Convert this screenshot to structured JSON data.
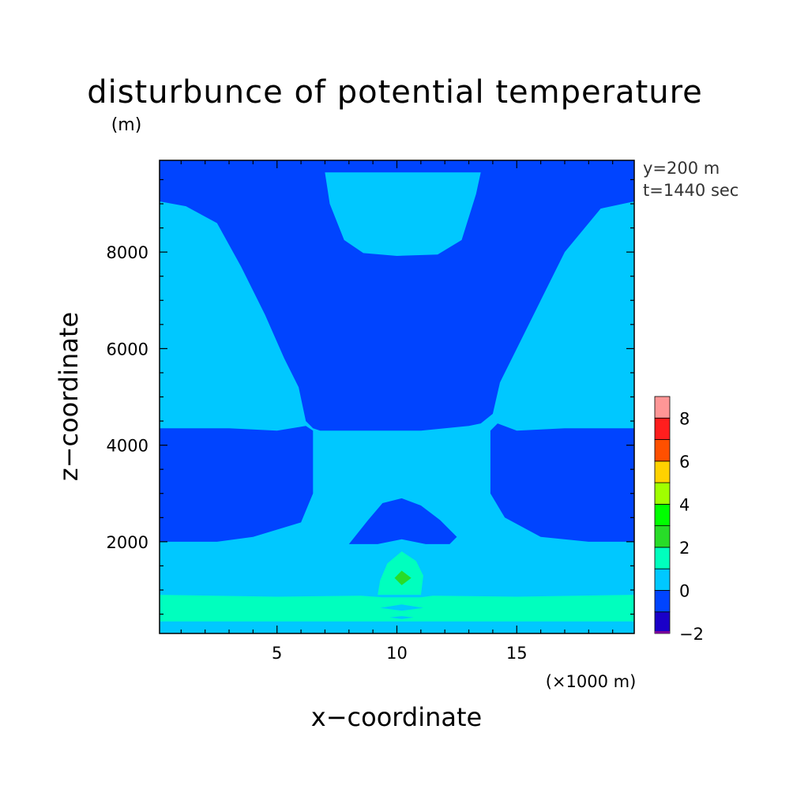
{
  "chart_data": {
    "type": "heatmap",
    "title": "disturbunce of potential temperature",
    "yunit": "(m)",
    "xlabel": "x−coordinate",
    "ylabel": "z−coordinate",
    "xunit": "(×1000 m)",
    "annotations": [
      "y=200 m",
      "t=1440 sec"
    ],
    "xlim": [
      0.1,
      19.9
    ],
    "ylim": [
      100,
      9900
    ],
    "xticks": [
      5,
      10,
      15
    ],
    "yticks": [
      2000,
      4000,
      6000,
      8000
    ],
    "xtick_labels": [
      "5",
      "10",
      "15"
    ],
    "ytick_labels": [
      "2000",
      "4000",
      "6000",
      "8000"
    ],
    "colorbar": {
      "levels": [
        -2,
        -1,
        0,
        1,
        2,
        3,
        4,
        5,
        6,
        7,
        8,
        9
      ],
      "tick_values": [
        -2,
        0,
        2,
        4,
        6,
        8
      ],
      "tick_labels": [
        "−2",
        "0",
        "2",
        "4",
        "6",
        "8"
      ],
      "colors": [
        "#1a00c8",
        "#0044ff",
        "#00c8ff",
        "#00ffbe",
        "#28dc28",
        "#00ff00",
        "#a0ff00",
        "#ffd200",
        "#ff5000",
        "#ff1e1e",
        "#ff9696"
      ]
    },
    "regions": [
      {
        "name": "background-band-0-to-1",
        "level": 0,
        "polygon": []
      },
      {
        "name": "upper-dark-core",
        "level": -1,
        "polygon": [
          [
            0.1,
            9050
          ],
          [
            1.2,
            8950
          ],
          [
            2.5,
            8600
          ],
          [
            3.5,
            7700
          ],
          [
            4.5,
            6700
          ],
          [
            5.3,
            5800
          ],
          [
            5.9,
            5200
          ],
          [
            6.2,
            4500
          ],
          [
            6.5,
            4350
          ],
          [
            6.8,
            4300
          ],
          [
            9,
            4300
          ],
          [
            11,
            4300
          ],
          [
            13,
            4400
          ],
          [
            13.5,
            4450
          ],
          [
            14.0,
            4650
          ],
          [
            14.3,
            5300
          ],
          [
            15.0,
            6000
          ],
          [
            16.0,
            7000
          ],
          [
            17.0,
            8000
          ],
          [
            18.5,
            8900
          ],
          [
            19.9,
            9050
          ],
          [
            19.9,
            9850
          ],
          [
            0.1,
            9850
          ]
        ]
      },
      {
        "name": "top-light-bowl",
        "level": 0,
        "polygon": [
          [
            7.0,
            9650
          ],
          [
            13.5,
            9650
          ],
          [
            13.3,
            9200
          ],
          [
            12.7,
            8250
          ],
          [
            11.7,
            7950
          ],
          [
            10.0,
            7920
          ],
          [
            8.6,
            7980
          ],
          [
            7.8,
            8250
          ],
          [
            7.2,
            9000
          ]
        ]
      },
      {
        "name": "top-edge-strip",
        "level": -1,
        "polygon": [
          [
            0.1,
            9900
          ],
          [
            19.9,
            9900
          ],
          [
            19.9,
            9780
          ],
          [
            0.1,
            9780
          ]
        ]
      },
      {
        "name": "middle-dark-left",
        "level": -1,
        "polygon": [
          [
            0.1,
            4350
          ],
          [
            3,
            4350
          ],
          [
            5,
            4300
          ],
          [
            6.2,
            4400
          ],
          [
            6.5,
            4300
          ],
          [
            6.5,
            3000
          ],
          [
            6.0,
            2400
          ],
          [
            4.0,
            2100
          ],
          [
            2.5,
            2000
          ],
          [
            0.1,
            2000
          ]
        ]
      },
      {
        "name": "middle-dark-right",
        "level": -1,
        "polygon": [
          [
            19.9,
            4350
          ],
          [
            17,
            4350
          ],
          [
            15,
            4300
          ],
          [
            14.2,
            4450
          ],
          [
            13.9,
            4300
          ],
          [
            13.9,
            3000
          ],
          [
            14.5,
            2500
          ],
          [
            16,
            2100
          ],
          [
            18,
            2000
          ],
          [
            19.9,
            2000
          ]
        ]
      },
      {
        "name": "lower-dark-lobe",
        "level": -1,
        "polygon": [
          [
            8.0,
            1950
          ],
          [
            8.8,
            2450
          ],
          [
            9.4,
            2800
          ],
          [
            10.2,
            2900
          ],
          [
            11.0,
            2750
          ],
          [
            11.8,
            2450
          ],
          [
            12.5,
            2100
          ],
          [
            12.2,
            1950
          ],
          [
            11.2,
            1950
          ],
          [
            10.2,
            2050
          ],
          [
            9.2,
            1950
          ]
        ]
      },
      {
        "name": "bottom-band",
        "level": 1,
        "polygon": [
          [
            0.1,
            900
          ],
          [
            5,
            860
          ],
          [
            8.5,
            880
          ],
          [
            9.4,
            850
          ],
          [
            11,
            850
          ],
          [
            11.5,
            880
          ],
          [
            15,
            860
          ],
          [
            19.9,
            900
          ],
          [
            19.9,
            350
          ],
          [
            0.1,
            350
          ]
        ]
      },
      {
        "name": "central-plume",
        "level": 1,
        "polygon": [
          [
            9.2,
            900
          ],
          [
            9.3,
            1200
          ],
          [
            9.6,
            1550
          ],
          [
            10.2,
            1800
          ],
          [
            10.8,
            1600
          ],
          [
            11.1,
            1300
          ],
          [
            11.0,
            900
          ]
        ]
      },
      {
        "name": "plume-core",
        "level": 2,
        "polygon": [
          [
            9.9,
            1250
          ],
          [
            10.2,
            1400
          ],
          [
            10.6,
            1250
          ],
          [
            10.2,
            1100
          ]
        ]
      },
      {
        "name": "bottom-edge-strip",
        "level": 0,
        "polygon": [
          [
            0.1,
            300
          ],
          [
            19.9,
            300
          ],
          [
            19.9,
            100
          ],
          [
            0.1,
            100
          ]
        ]
      },
      {
        "name": "thin-blue-lens",
        "level": 0,
        "polygon": [
          [
            9.3,
            630
          ],
          [
            10.2,
            700
          ],
          [
            11.1,
            630
          ],
          [
            10.2,
            570
          ]
        ]
      },
      {
        "name": "tiny-blue-lens",
        "level": 0,
        "polygon": [
          [
            9.7,
            430
          ],
          [
            10.2,
            460
          ],
          [
            10.7,
            430
          ],
          [
            10.2,
            400
          ]
        ]
      }
    ]
  }
}
